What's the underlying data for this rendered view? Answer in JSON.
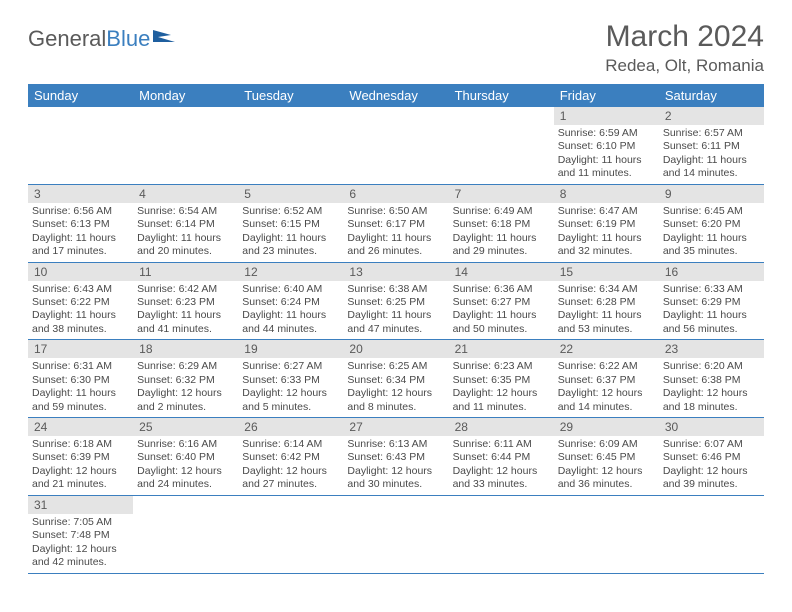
{
  "logo": {
    "part1": "General",
    "part2": "Blue"
  },
  "title": "March 2024",
  "location": "Redea, Olt, Romania",
  "header_color": "#3b7fbf",
  "day_headers": [
    "Sunday",
    "Monday",
    "Tuesday",
    "Wednesday",
    "Thursday",
    "Friday",
    "Saturday"
  ],
  "weeks": [
    [
      null,
      null,
      null,
      null,
      null,
      {
        "n": "1",
        "sr": "Sunrise: 6:59 AM",
        "ss": "Sunset: 6:10 PM",
        "d1": "Daylight: 11 hours",
        "d2": "and 11 minutes."
      },
      {
        "n": "2",
        "sr": "Sunrise: 6:57 AM",
        "ss": "Sunset: 6:11 PM",
        "d1": "Daylight: 11 hours",
        "d2": "and 14 minutes."
      }
    ],
    [
      {
        "n": "3",
        "sr": "Sunrise: 6:56 AM",
        "ss": "Sunset: 6:13 PM",
        "d1": "Daylight: 11 hours",
        "d2": "and 17 minutes."
      },
      {
        "n": "4",
        "sr": "Sunrise: 6:54 AM",
        "ss": "Sunset: 6:14 PM",
        "d1": "Daylight: 11 hours",
        "d2": "and 20 minutes."
      },
      {
        "n": "5",
        "sr": "Sunrise: 6:52 AM",
        "ss": "Sunset: 6:15 PM",
        "d1": "Daylight: 11 hours",
        "d2": "and 23 minutes."
      },
      {
        "n": "6",
        "sr": "Sunrise: 6:50 AM",
        "ss": "Sunset: 6:17 PM",
        "d1": "Daylight: 11 hours",
        "d2": "and 26 minutes."
      },
      {
        "n": "7",
        "sr": "Sunrise: 6:49 AM",
        "ss": "Sunset: 6:18 PM",
        "d1": "Daylight: 11 hours",
        "d2": "and 29 minutes."
      },
      {
        "n": "8",
        "sr": "Sunrise: 6:47 AM",
        "ss": "Sunset: 6:19 PM",
        "d1": "Daylight: 11 hours",
        "d2": "and 32 minutes."
      },
      {
        "n": "9",
        "sr": "Sunrise: 6:45 AM",
        "ss": "Sunset: 6:20 PM",
        "d1": "Daylight: 11 hours",
        "d2": "and 35 minutes."
      }
    ],
    [
      {
        "n": "10",
        "sr": "Sunrise: 6:43 AM",
        "ss": "Sunset: 6:22 PM",
        "d1": "Daylight: 11 hours",
        "d2": "and 38 minutes."
      },
      {
        "n": "11",
        "sr": "Sunrise: 6:42 AM",
        "ss": "Sunset: 6:23 PM",
        "d1": "Daylight: 11 hours",
        "d2": "and 41 minutes."
      },
      {
        "n": "12",
        "sr": "Sunrise: 6:40 AM",
        "ss": "Sunset: 6:24 PM",
        "d1": "Daylight: 11 hours",
        "d2": "and 44 minutes."
      },
      {
        "n": "13",
        "sr": "Sunrise: 6:38 AM",
        "ss": "Sunset: 6:25 PM",
        "d1": "Daylight: 11 hours",
        "d2": "and 47 minutes."
      },
      {
        "n": "14",
        "sr": "Sunrise: 6:36 AM",
        "ss": "Sunset: 6:27 PM",
        "d1": "Daylight: 11 hours",
        "d2": "and 50 minutes."
      },
      {
        "n": "15",
        "sr": "Sunrise: 6:34 AM",
        "ss": "Sunset: 6:28 PM",
        "d1": "Daylight: 11 hours",
        "d2": "and 53 minutes."
      },
      {
        "n": "16",
        "sr": "Sunrise: 6:33 AM",
        "ss": "Sunset: 6:29 PM",
        "d1": "Daylight: 11 hours",
        "d2": "and 56 minutes."
      }
    ],
    [
      {
        "n": "17",
        "sr": "Sunrise: 6:31 AM",
        "ss": "Sunset: 6:30 PM",
        "d1": "Daylight: 11 hours",
        "d2": "and 59 minutes."
      },
      {
        "n": "18",
        "sr": "Sunrise: 6:29 AM",
        "ss": "Sunset: 6:32 PM",
        "d1": "Daylight: 12 hours",
        "d2": "and 2 minutes."
      },
      {
        "n": "19",
        "sr": "Sunrise: 6:27 AM",
        "ss": "Sunset: 6:33 PM",
        "d1": "Daylight: 12 hours",
        "d2": "and 5 minutes."
      },
      {
        "n": "20",
        "sr": "Sunrise: 6:25 AM",
        "ss": "Sunset: 6:34 PM",
        "d1": "Daylight: 12 hours",
        "d2": "and 8 minutes."
      },
      {
        "n": "21",
        "sr": "Sunrise: 6:23 AM",
        "ss": "Sunset: 6:35 PM",
        "d1": "Daylight: 12 hours",
        "d2": "and 11 minutes."
      },
      {
        "n": "22",
        "sr": "Sunrise: 6:22 AM",
        "ss": "Sunset: 6:37 PM",
        "d1": "Daylight: 12 hours",
        "d2": "and 14 minutes."
      },
      {
        "n": "23",
        "sr": "Sunrise: 6:20 AM",
        "ss": "Sunset: 6:38 PM",
        "d1": "Daylight: 12 hours",
        "d2": "and 18 minutes."
      }
    ],
    [
      {
        "n": "24",
        "sr": "Sunrise: 6:18 AM",
        "ss": "Sunset: 6:39 PM",
        "d1": "Daylight: 12 hours",
        "d2": "and 21 minutes."
      },
      {
        "n": "25",
        "sr": "Sunrise: 6:16 AM",
        "ss": "Sunset: 6:40 PM",
        "d1": "Daylight: 12 hours",
        "d2": "and 24 minutes."
      },
      {
        "n": "26",
        "sr": "Sunrise: 6:14 AM",
        "ss": "Sunset: 6:42 PM",
        "d1": "Daylight: 12 hours",
        "d2": "and 27 minutes."
      },
      {
        "n": "27",
        "sr": "Sunrise: 6:13 AM",
        "ss": "Sunset: 6:43 PM",
        "d1": "Daylight: 12 hours",
        "d2": "and 30 minutes."
      },
      {
        "n": "28",
        "sr": "Sunrise: 6:11 AM",
        "ss": "Sunset: 6:44 PM",
        "d1": "Daylight: 12 hours",
        "d2": "and 33 minutes."
      },
      {
        "n": "29",
        "sr": "Sunrise: 6:09 AM",
        "ss": "Sunset: 6:45 PM",
        "d1": "Daylight: 12 hours",
        "d2": "and 36 minutes."
      },
      {
        "n": "30",
        "sr": "Sunrise: 6:07 AM",
        "ss": "Sunset: 6:46 PM",
        "d1": "Daylight: 12 hours",
        "d2": "and 39 minutes."
      }
    ],
    [
      {
        "n": "31",
        "sr": "Sunrise: 7:05 AM",
        "ss": "Sunset: 7:48 PM",
        "d1": "Daylight: 12 hours",
        "d2": "and 42 minutes."
      },
      null,
      null,
      null,
      null,
      null,
      null
    ]
  ]
}
